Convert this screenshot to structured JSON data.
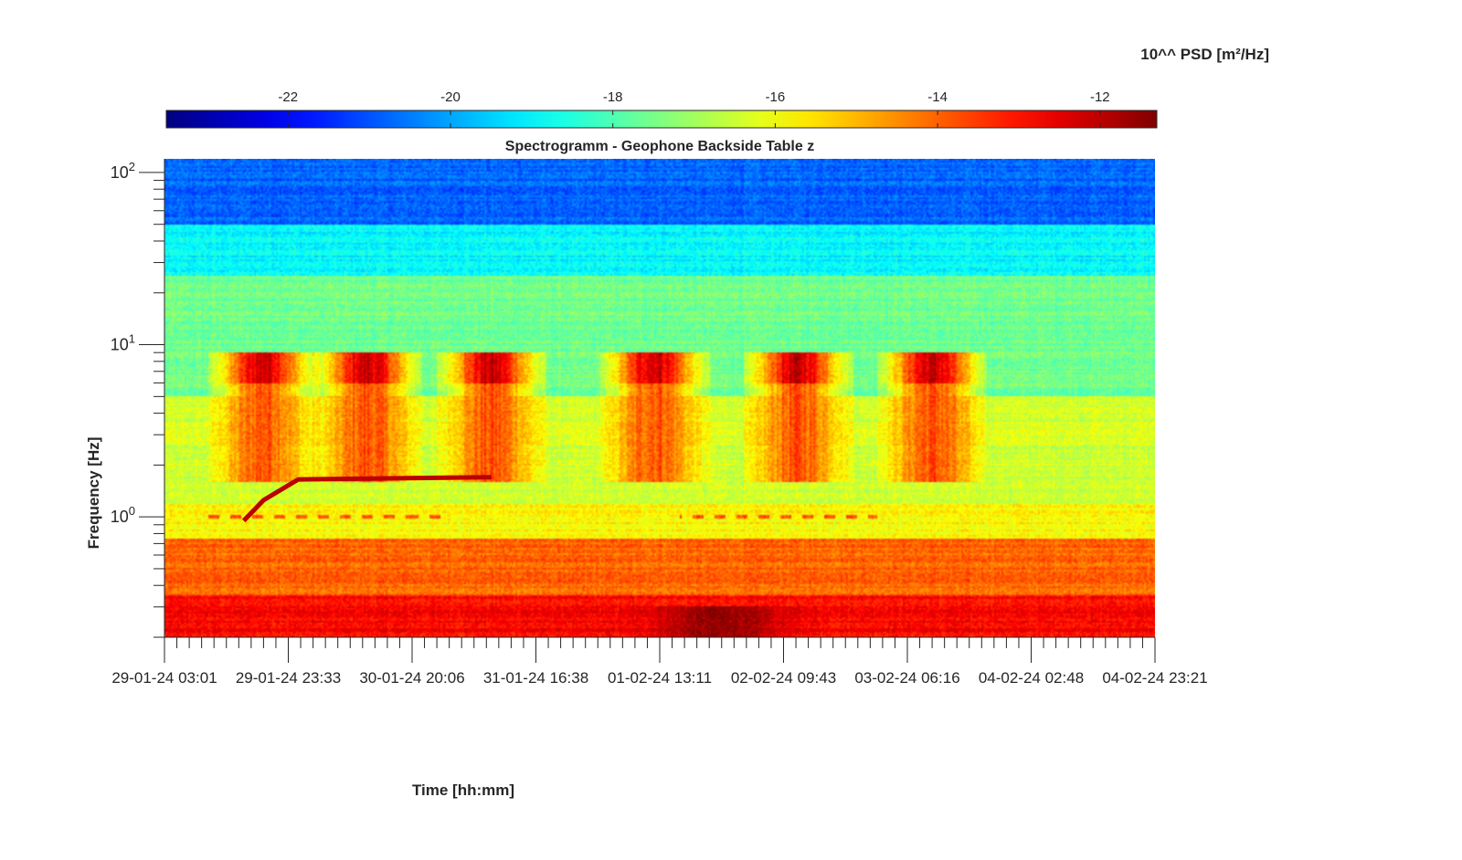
{
  "chart_data": {
    "type": "heatmap",
    "title": "Spectrogramm - Geophone Backside Table z",
    "xlabel": "Time [hh:mm]",
    "ylabel": "Frequency [Hz]",
    "x_ticks": [
      "29-01-24 03:01",
      "29-01-24 23:33",
      "30-01-24 20:06",
      "31-01-24 16:38",
      "01-02-24 13:11",
      "02-02-24 09:43",
      "03-02-24 06:16",
      "04-02-24 02:48",
      "04-02-24 23:21"
    ],
    "xlim": [
      "29-01-24 03:01",
      "04-02-24 23:21"
    ],
    "y_scale": "log",
    "ylim": [
      0.2,
      120
    ],
    "y_ticks": [
      {
        "value": 1,
        "base": "10",
        "exp": "0"
      },
      {
        "value": 10,
        "base": "10",
        "exp": "1"
      },
      {
        "value": 100,
        "base": "10",
        "exp": "2"
      }
    ],
    "colorbar": {
      "label": "10^^ PSD [m²/Hz]",
      "range": [
        -23.5,
        -11.3
      ],
      "ticks": [
        "-22",
        "-20",
        "-18",
        "-16",
        "-14",
        "-12"
      ],
      "tick_values": [
        -22,
        -20,
        -18,
        -16,
        -14,
        -12
      ],
      "colormap": "jet",
      "colors": [
        "#00008f",
        "#0000ff",
        "#00ffff",
        "#ffff00",
        "#ff0000",
        "#800000"
      ]
    },
    "grid": false,
    "features": {
      "background_bands": [
        {
          "f_low": 50,
          "f_high": 120,
          "log10_psd": -20.8
        },
        {
          "f_low": 25,
          "f_high": 50,
          "log10_psd": -19.0
        },
        {
          "f_low": 5,
          "f_high": 25,
          "log10_psd": -17.6
        },
        {
          "f_low": 1.2,
          "f_high": 5,
          "log10_psd": -16.4
        },
        {
          "f_low": 0.75,
          "f_high": 1.2,
          "log10_psd": -15.8
        },
        {
          "f_low": 0.35,
          "f_high": 0.75,
          "log10_psd": -14.0
        },
        {
          "f_low": 0.2,
          "f_high": 0.35,
          "log10_psd": -12.8
        }
      ],
      "daily_activity_centers_frac": [
        0.1,
        0.205,
        0.33,
        0.495,
        0.64,
        0.775
      ],
      "activity_band_hz": [
        1.6,
        6
      ],
      "activity_log10_psd": -13.8,
      "tone_line": {
        "log10_psd": -12.0,
        "points": [
          [
            0.08,
            0.95
          ],
          [
            0.1,
            1.25
          ],
          [
            0.135,
            1.65
          ],
          [
            0.33,
            1.7
          ]
        ]
      },
      "dashed_1hz_line": {
        "freq": 1.0,
        "log10_psd": -13.8,
        "spans": [
          [
            0.045,
            0.29
          ],
          [
            0.52,
            0.72
          ]
        ]
      },
      "low_freq_hotspot": {
        "center_frac": 0.56,
        "freq_range": [
          0.2,
          0.3
        ],
        "log10_psd": -11.5
      }
    }
  }
}
